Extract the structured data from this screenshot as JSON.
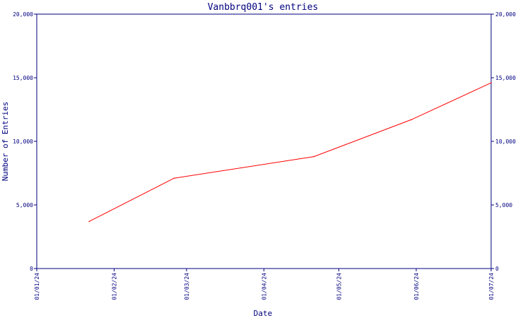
{
  "chart_data": {
    "type": "line",
    "title": "Vanbbrq001's entries",
    "xlabel": "Date",
    "ylabel": "Number of Entries",
    "x_ticks": [
      "01/01/24",
      "01/02/24",
      "01/03/24",
      "01/04/24",
      "01/05/24",
      "01/06/24",
      "01/07/24"
    ],
    "y_ticks": [
      "0",
      "5,000",
      "10,000",
      "15,000",
      "20,000"
    ],
    "ylim": [
      0,
      20000
    ],
    "xlim": [
      "2024-01-01",
      "2024-07-01"
    ],
    "grid": false,
    "colors": {
      "axis": "#000080",
      "text": "#000080",
      "line": "#ff0000"
    },
    "series": [
      {
        "values": [
          {
            "x": "2024-01-22",
            "y": 3700
          },
          {
            "x": "2024-02-25",
            "y": 7100
          },
          {
            "x": "2024-04-21",
            "y": 8800
          },
          {
            "x": "2024-05-30",
            "y": 11700
          },
          {
            "x": "2024-07-01",
            "y": 14600
          }
        ]
      }
    ]
  }
}
